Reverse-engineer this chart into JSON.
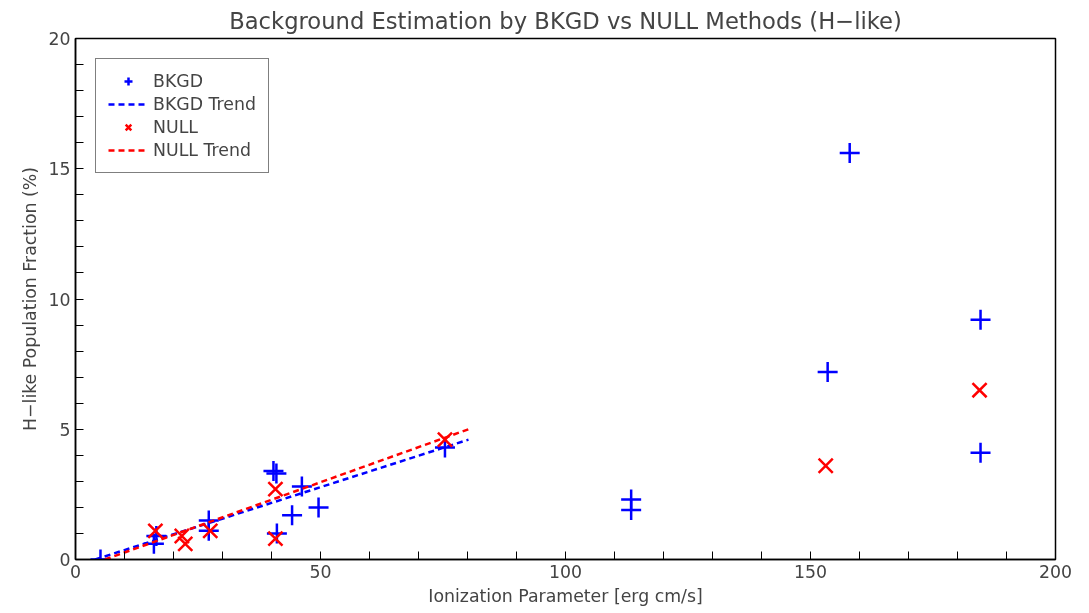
{
  "chart_data": {
    "type": "scatter",
    "title": "Background Estimation by BKGD vs NULL Methods (H−like)",
    "xlabel": "Ionization Parameter [erg cm/s]",
    "ylabel": "H−like Population Fraction (%)",
    "xlim": [
      0,
      200
    ],
    "ylim": [
      0,
      20
    ],
    "xticks": [
      0,
      {
        "value": 10,
        "label": null
      },
      {
        "value": 20,
        "label": null
      },
      {
        "value": 30,
        "label": null
      },
      {
        "value": 40,
        "label": null
      },
      50,
      {
        "value": 60,
        "label": null
      },
      {
        "value": 70,
        "label": null
      },
      {
        "value": 80,
        "label": null
      },
      {
        "value": 90,
        "label": null
      },
      100,
      {
        "value": 110,
        "label": null
      },
      {
        "value": 120,
        "label": null
      },
      {
        "value": 130,
        "label": null
      },
      {
        "value": 140,
        "label": null
      },
      150,
      {
        "value": 160,
        "label": null
      },
      {
        "value": 170,
        "label": null
      },
      {
        "value": 180,
        "label": null
      },
      {
        "value": 190,
        "label": null
      },
      200
    ],
    "yticks": [
      0,
      {
        "value": 1,
        "label": null
      },
      {
        "value": 2,
        "label": null
      },
      {
        "value": 3,
        "label": null
      },
      {
        "value": 4,
        "label": null
      },
      5,
      {
        "value": 6,
        "label": null
      },
      {
        "value": 7,
        "label": null
      },
      {
        "value": 8,
        "label": null
      },
      {
        "value": 9,
        "label": null
      },
      10,
      {
        "value": 11,
        "label": null
      },
      {
        "value": 12,
        "label": null
      },
      {
        "value": 13,
        "label": null
      },
      {
        "value": 14,
        "label": null
      },
      15,
      {
        "value": 16,
        "label": null
      },
      {
        "value": 17,
        "label": null
      },
      {
        "value": 18,
        "label": null
      },
      {
        "value": 19,
        "label": null
      },
      20
    ],
    "grid": false,
    "legend": "top left",
    "series": [
      {
        "name": "BKGD",
        "marker": "cross",
        "color": "#0000ff",
        "x": [
          5.1,
          16,
          16.5,
          27.2,
          27.2,
          40.4,
          41,
          41.1,
          46.2,
          44.2,
          49.6,
          75.4,
          113.4,
          113.4,
          153.5,
          158,
          184.7,
          184.7
        ],
        "values": [
          0.0,
          0.6,
          0.9,
          1.5,
          1.1,
          3.4,
          3.3,
          1.0,
          2.8,
          1.7,
          2.0,
          4.3,
          2.3,
          1.9,
          7.2,
          15.6,
          9.2,
          4.1
        ]
      },
      {
        "name": "BKGD Trend",
        "type": "line",
        "line_style": "dashed",
        "color": "#0000ff",
        "x": [
          4,
          80.2
        ],
        "values": [
          0,
          4.6
        ]
      },
      {
        "name": "NULL",
        "marker": "x",
        "color": "#ff0000",
        "x": [
          16.3,
          21.7,
          22.4,
          27.5,
          40.8,
          40.8,
          75.4,
          153.1,
          184.5
        ],
        "values": [
          1.1,
          0.9,
          0.6,
          1.1,
          2.7,
          0.8,
          4.6,
          3.6,
          6.5
        ]
      },
      {
        "name": "NULL Trend",
        "type": "line",
        "line_style": "dashed",
        "color": "#ff0000",
        "x": [
          6,
          80.2
        ],
        "values": [
          0,
          5.0
        ]
      }
    ]
  }
}
